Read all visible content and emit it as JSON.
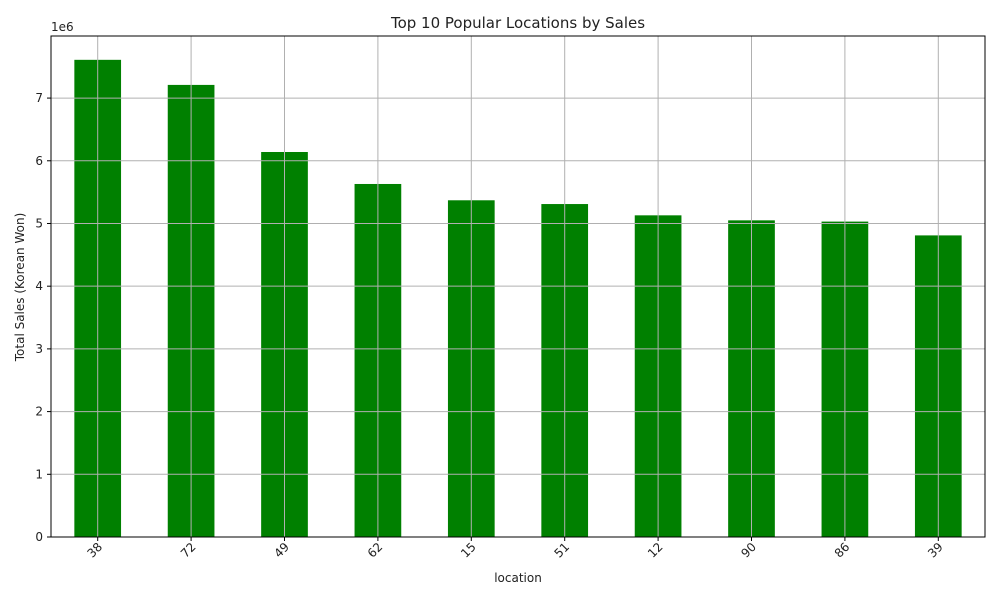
{
  "chart_data": {
    "type": "bar",
    "title": "Top 10 Popular Locations by Sales",
    "xlabel": "location",
    "ylabel": "Total Sales (Korean Won)",
    "scale_label": "1e6",
    "categories": [
      "38",
      "72",
      "49",
      "62",
      "15",
      "51",
      "12",
      "90",
      "86",
      "39"
    ],
    "values": [
      7.61,
      7.21,
      6.14,
      5.63,
      5.37,
      5.31,
      5.13,
      5.05,
      5.03,
      4.81
    ],
    "value_unit_multiplier": 1000000,
    "ylim": [
      0,
      7.99
    ],
    "yticks": [
      0,
      1,
      2,
      3,
      4,
      5,
      6,
      7
    ],
    "ytick_labels": [
      "0",
      "1",
      "2",
      "3",
      "4",
      "5",
      "6",
      "7"
    ],
    "grid": true,
    "bar_color": "#008000",
    "grid_color": "#b0b0b0",
    "legend": "none"
  }
}
